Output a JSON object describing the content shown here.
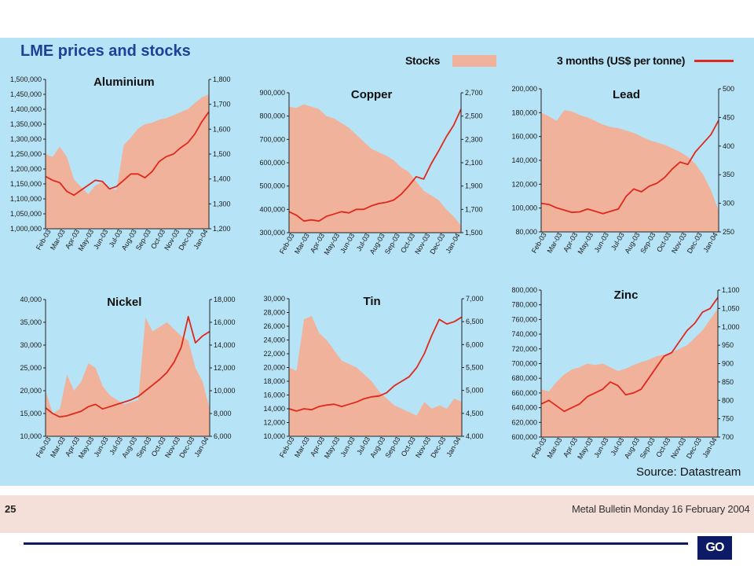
{
  "header": {
    "title": "LME prices and stocks",
    "legend_stocks": "Stocks",
    "legend_price": "3 months (US$ per tonne)"
  },
  "colors": {
    "background": "#b6e3f5",
    "stocks_fill": "#f0b29a",
    "price_line": "#e0281e",
    "title": "#1f3f9a",
    "footer_band": "#f5dfd9",
    "rule": "#0d1b66"
  },
  "source": "Source: Datastream",
  "footer": {
    "page_number": "25",
    "publication": "Metal Bulletin Monday 16 February 2004"
  },
  "logo_text": "GO",
  "chart_data": [
    {
      "type": "area+line",
      "title": "Aluminium",
      "x_ticks": [
        "Feb-03",
        "Mar-03",
        "Apr-03",
        "May-03",
        "Jun-03",
        "Jul-03",
        "Aug-03",
        "Sep-03",
        "Oct-03",
        "Nov-03",
        "Dec-03",
        "Jan-04"
      ],
      "left_axis": {
        "label": "Stocks",
        "ticks": [
          "1,000,000",
          "1,050,000",
          "1,100,000",
          "1,150,000",
          "1,200,000",
          "1,250,000",
          "1,300,000",
          "1,350,000",
          "1,400,000",
          "1,450,000",
          "1,500,000"
        ],
        "range": [
          1000000,
          1500000
        ]
      },
      "right_axis": {
        "label": "3 months (US$ per tonne)",
        "ticks": [
          "1,200",
          "1,300",
          "1,400",
          "1,500",
          "1,600",
          "1,700",
          "1,800"
        ],
        "range": [
          1200,
          1800
        ]
      },
      "stocks": [
        1250000,
        1240000,
        1275000,
        1240000,
        1165000,
        1140000,
        1115000,
        1145000,
        1155000,
        1135000,
        1130000,
        1280000,
        1305000,
        1335000,
        1350000,
        1355000,
        1365000,
        1370000,
        1380000,
        1390000,
        1400000,
        1420000,
        1440000,
        1450000
      ],
      "price": [
        1410,
        1395,
        1385,
        1350,
        1335,
        1355,
        1375,
        1395,
        1390,
        1360,
        1370,
        1395,
        1420,
        1420,
        1405,
        1430,
        1470,
        1490,
        1500,
        1525,
        1545,
        1580,
        1630,
        1670
      ]
    },
    {
      "type": "area+line",
      "title": "Copper",
      "x_ticks": [
        "Feb-03",
        "Mar-03",
        "Apr-03",
        "May-03",
        "Jun-03",
        "Jul-03",
        "Aug-03",
        "Sep-03",
        "Oct-03",
        "Nov-03",
        "Dec-03",
        "Jan-04"
      ],
      "left_axis": {
        "label": "Stocks",
        "ticks": [
          "300,000",
          "400,000",
          "500,000",
          "600,000",
          "700,000",
          "800,000",
          "900,000"
        ],
        "range": [
          300000,
          900000
        ]
      },
      "right_axis": {
        "label": "3 months (US$ per tonne)",
        "ticks": [
          "1,500",
          "1,700",
          "1,900",
          "2,100",
          "2,300",
          "2,500",
          "2,700"
        ],
        "range": [
          1500,
          2700
        ]
      },
      "stocks": [
        840000,
        835000,
        850000,
        840000,
        830000,
        800000,
        790000,
        770000,
        750000,
        720000,
        690000,
        660000,
        645000,
        630000,
        610000,
        580000,
        560000,
        520000,
        480000,
        460000,
        440000,
        400000,
        370000,
        330000
      ],
      "price": [
        1680,
        1650,
        1600,
        1610,
        1600,
        1640,
        1660,
        1680,
        1670,
        1700,
        1700,
        1730,
        1750,
        1760,
        1780,
        1830,
        1900,
        1980,
        1960,
        2090,
        2200,
        2320,
        2420,
        2560
      ]
    },
    {
      "type": "area+line",
      "title": "Lead",
      "x_ticks": [
        "Feb-03",
        "Mar-03",
        "Apr-03",
        "May-03",
        "Jun-03",
        "Jul-03",
        "Aug-03",
        "Sep-03",
        "Oct-03",
        "Nov-03",
        "Dec-03",
        "Jan-04"
      ],
      "left_axis": {
        "label": "Stocks",
        "ticks": [
          "80,000",
          "100,000",
          "120,000",
          "140,000",
          "160,000",
          "180,000",
          "200,000"
        ],
        "range": [
          80000,
          200000
        ]
      },
      "right_axis": {
        "label": "3 months (US$ per tonne)",
        "ticks": [
          "250",
          "300",
          "350",
          "400",
          "450",
          "500"
        ],
        "range": [
          250,
          500
        ]
      },
      "stocks": [
        180000,
        177000,
        173000,
        182000,
        181000,
        178000,
        176000,
        173000,
        170000,
        168000,
        167000,
        165000,
        163000,
        160000,
        157000,
        155000,
        153000,
        150000,
        147000,
        143000,
        137000,
        128000,
        115000,
        98000
      ],
      "price": [
        300,
        298,
        292,
        288,
        284,
        285,
        290,
        286,
        282,
        286,
        290,
        312,
        325,
        320,
        330,
        335,
        345,
        360,
        372,
        368,
        390,
        405,
        420,
        445
      ]
    },
    {
      "type": "area+line",
      "title": "Nickel",
      "x_ticks": [
        "Feb-03",
        "Mar-03",
        "Apr-03",
        "May-03",
        "Jun-03",
        "Jul-03",
        "Aug-03",
        "Sep-03",
        "Oct-03",
        "Nov-03",
        "Dec-03",
        "Jan-04"
      ],
      "left_axis": {
        "label": "Stocks",
        "ticks": [
          "10,000",
          "15,000",
          "20,000",
          "25,000",
          "30,000",
          "35,000",
          "40,000"
        ],
        "range": [
          10000,
          40000
        ]
      },
      "right_axis": {
        "label": "3 months (US$ per tonne)",
        "ticks": [
          "6,000",
          "8,000",
          "10,000",
          "12,000",
          "14,000",
          "16,000",
          "18,000"
        ],
        "range": [
          6000,
          18000
        ]
      },
      "stocks": [
        20000,
        15000,
        16000,
        23500,
        20000,
        22000,
        26000,
        25000,
        21000,
        19000,
        18000,
        17000,
        17500,
        18000,
        36000,
        33000,
        34000,
        35000,
        33500,
        32000,
        31000,
        25000,
        22000,
        16000
      ],
      "price": [
        8500,
        8000,
        7700,
        7800,
        8000,
        8200,
        8600,
        8800,
        8400,
        8600,
        8800,
        9000,
        9200,
        9500,
        10000,
        10500,
        11000,
        11600,
        12500,
        13800,
        16500,
        14200,
        14800,
        15200
      ]
    },
    {
      "type": "area+line",
      "title": "Tin",
      "x_ticks": [
        "Feb-03",
        "Mar-03",
        "Apr-03",
        "May-03",
        "Jun-03",
        "Jul-03",
        "Aug-03",
        "Sep-03",
        "Oct-03",
        "Nov-03",
        "Dec-03",
        "Jan-04"
      ],
      "left_axis": {
        "label": "Stocks",
        "ticks": [
          "10,000",
          "12,000",
          "14,000",
          "16,000",
          "18,000",
          "20,000",
          "22,000",
          "24,000",
          "26,000",
          "28,000",
          "30,000"
        ],
        "range": [
          10000,
          30000
        ]
      },
      "right_axis": {
        "label": "3 months (US$ per tonne)",
        "ticks": [
          "4,000",
          "4,500",
          "5,000",
          "5,500",
          "6,000",
          "6,500",
          "7,000"
        ],
        "range": [
          4000,
          7000
        ]
      },
      "stocks": [
        20000,
        19500,
        27000,
        27500,
        25000,
        24000,
        22500,
        21000,
        20500,
        20000,
        19000,
        18000,
        16500,
        15500,
        14500,
        14000,
        13500,
        13000,
        15000,
        14000,
        14500,
        14000,
        15500,
        15000
      ],
      "price": [
        4600,
        4550,
        4600,
        4580,
        4650,
        4680,
        4700,
        4650,
        4700,
        4750,
        4820,
        4860,
        4880,
        4950,
        5100,
        5200,
        5300,
        5500,
        5800,
        6200,
        6550,
        6450,
        6500,
        6600
      ]
    },
    {
      "type": "area+line",
      "title": "Zinc",
      "x_ticks": [
        "Feb-03",
        "Mar-03",
        "Apr-03",
        "May-03",
        "Jun-03",
        "Jul-03",
        "Aug-03",
        "Sep-03",
        "Oct-03",
        "Nov-03",
        "Dec-03",
        "Jan-04"
      ],
      "left_axis": {
        "label": "Stocks",
        "ticks": [
          "600,000",
          "620,000",
          "640,000",
          "660,000",
          "680,000",
          "700,000",
          "720,000",
          "740,000",
          "760,000",
          "780,000",
          "800,000"
        ],
        "range": [
          600000,
          800000
        ]
      },
      "right_axis": {
        "label": "3 months (US$ per tonne)",
        "ticks": [
          "700",
          "750",
          "800",
          "850",
          "900",
          "950",
          "1,000",
          "1,050",
          "1,100"
        ],
        "range": [
          700,
          1100
        ]
      },
      "stocks": [
        665000,
        662000,
        675000,
        685000,
        692000,
        695000,
        700000,
        698000,
        700000,
        695000,
        690000,
        693000,
        698000,
        702000,
        705000,
        710000,
        712000,
        715000,
        720000,
        725000,
        735000,
        745000,
        760000,
        775000
      ],
      "price": [
        790,
        800,
        785,
        770,
        780,
        790,
        810,
        820,
        830,
        850,
        840,
        815,
        820,
        830,
        860,
        890,
        920,
        930,
        960,
        990,
        1010,
        1040,
        1050,
        1080
      ]
    }
  ]
}
